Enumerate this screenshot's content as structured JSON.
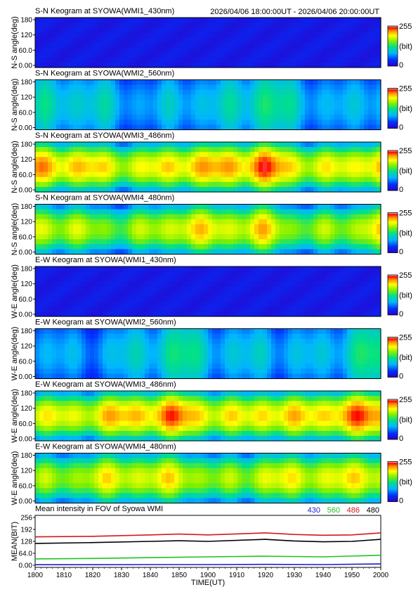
{
  "header": {
    "time_range": "2026/04/06 18:00:00UT - 2026/04/06 20:00:00UT"
  },
  "colorbar": {
    "max_label": "255",
    "unit_label": "(bit)",
    "min_label": "0"
  },
  "keogram_yticks": [
    "180",
    "120",
    "60.0",
    "0.00"
  ],
  "chart_data": [
    {
      "type": "heatmap",
      "title": "S-N Keogram at SYOWA(WMI1_430nm)",
      "ylabel": "N-S angle(deg)",
      "ylim": [
        0,
        180
      ],
      "zlim": [
        0,
        255
      ],
      "level": 0.08
    },
    {
      "type": "heatmap",
      "title": "S-N Keogram at SYOWA(WMI2_560nm)",
      "ylabel": "N-S angle(deg)",
      "ylim": [
        0,
        180
      ],
      "zlim": [
        0,
        255
      ],
      "level": 0.35
    },
    {
      "type": "heatmap",
      "title": "S-N Keogram at SYOWA(WMI3_486nm)",
      "ylabel": "N-S angle(deg)",
      "ylim": [
        0,
        180
      ],
      "zlim": [
        0,
        255
      ],
      "level": 0.78
    },
    {
      "type": "heatmap",
      "title": "S-N Keogram at SYOWA(WMI4_480nm)",
      "ylabel": "N-S angle(deg)",
      "ylim": [
        0,
        180
      ],
      "zlim": [
        0,
        255
      ],
      "level": 0.68
    },
    {
      "type": "heatmap",
      "title": "E-W Keogram at SYOWA(WMI1_430nm)",
      "ylabel": "W-E angle(deg)",
      "ylim": [
        0,
        180
      ],
      "zlim": [
        0,
        255
      ],
      "level": 0.08
    },
    {
      "type": "heatmap",
      "title": "E-W Keogram at SYOWA(WMI2_560nm)",
      "ylabel": "W-E angle(deg)",
      "ylim": [
        0,
        180
      ],
      "zlim": [
        0,
        255
      ],
      "level": 0.35
    },
    {
      "type": "heatmap",
      "title": "E-W Keogram at SYOWA(WMI3_486nm)",
      "ylabel": "W-E angle(deg)",
      "ylim": [
        0,
        180
      ],
      "zlim": [
        0,
        255
      ],
      "level": 0.78
    },
    {
      "type": "heatmap",
      "title": "E-W Keogram at SYOWA(WMI4_480nm)",
      "ylabel": "W-E angle(deg)",
      "ylim": [
        0,
        180
      ],
      "zlim": [
        0,
        255
      ],
      "level": 0.68
    },
    {
      "type": "line",
      "title": "Mean intensity in FOV of Syowa WMI",
      "ylabel": "MEAN(BIT)",
      "xlabel": "TIME(UT)",
      "ylim": [
        0,
        256
      ],
      "yticks": [
        "256",
        "192",
        "128",
        "64.0",
        "0.00"
      ],
      "xlim": [
        1800,
        2000
      ],
      "xticks": [
        "1800",
        "1810",
        "1820",
        "1830",
        "1840",
        "1850",
        "1900",
        "1910",
        "1920",
        "1930",
        "1940",
        "1950",
        "2000"
      ],
      "series": [
        {
          "name": "430",
          "color": "#1c1cd0",
          "x": [
            1800,
            1820,
            1840,
            1900,
            1920,
            1940,
            2000
          ],
          "values": [
            13,
            13,
            14,
            14,
            15,
            14,
            17
          ]
        },
        {
          "name": "560",
          "color": "#21c321",
          "x": [
            1800,
            1820,
            1840,
            1900,
            1920,
            1940,
            2000
          ],
          "values": [
            42,
            44,
            48,
            52,
            55,
            52,
            60
          ]
        },
        {
          "name": "486",
          "color": "#d21a1a",
          "x": [
            1800,
            1820,
            1840,
            1850,
            1900,
            1920,
            1930,
            1940,
            1950,
            2000
          ],
          "values": [
            150,
            153,
            160,
            164,
            160,
            170,
            162,
            158,
            160,
            170
          ]
        },
        {
          "name": "480",
          "color": "#000000",
          "x": [
            1800,
            1820,
            1840,
            1850,
            1900,
            1920,
            1930,
            1940,
            1950,
            2000
          ],
          "values": [
            118,
            122,
            128,
            131,
            128,
            138,
            130,
            126,
            128,
            138
          ]
        }
      ]
    }
  ]
}
